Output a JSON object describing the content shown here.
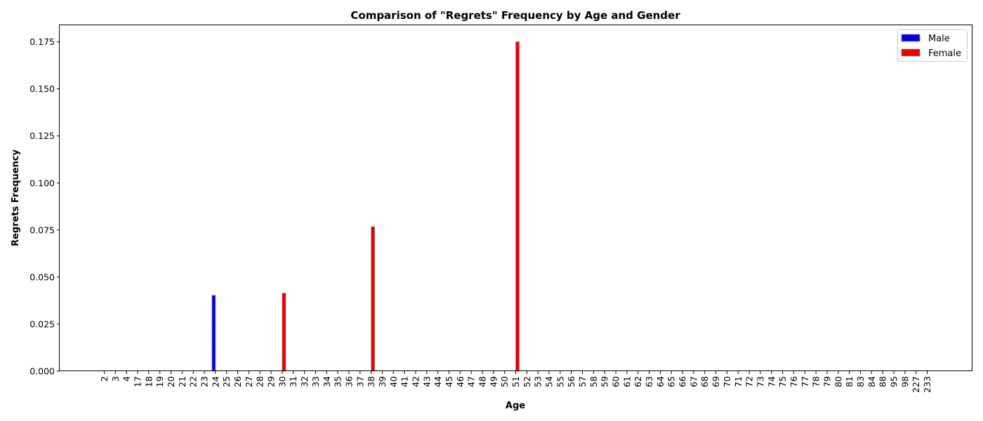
{
  "chart_data": {
    "type": "bar",
    "title": "Comparison of \"Regrets\" Frequency by Age and Gender",
    "xlabel": "Age",
    "ylabel": "Regrets Frequency",
    "categories": [
      "2",
      "3",
      "4",
      "17",
      "18",
      "19",
      "20",
      "21",
      "22",
      "23",
      "24",
      "25",
      "26",
      "27",
      "28",
      "29",
      "30",
      "31",
      "32",
      "33",
      "34",
      "35",
      "36",
      "37",
      "38",
      "39",
      "40",
      "41",
      "42",
      "43",
      "44",
      "45",
      "46",
      "47",
      "48",
      "49",
      "50",
      "51",
      "52",
      "53",
      "54",
      "55",
      "56",
      "57",
      "58",
      "59",
      "60",
      "61",
      "62",
      "63",
      "64",
      "65",
      "66",
      "67",
      "68",
      "69",
      "70",
      "71",
      "72",
      "73",
      "74",
      "75",
      "76",
      "77",
      "78",
      "79",
      "80",
      "81",
      "83",
      "84",
      "88",
      "95",
      "98",
      "227",
      "233"
    ],
    "series": [
      {
        "name": "Male",
        "color": "#0000dd",
        "values": [
          0,
          0,
          0,
          0,
          0,
          0,
          0,
          0,
          0,
          0,
          0.0403,
          0,
          0,
          0,
          0,
          0,
          0,
          0,
          0,
          0,
          0,
          0,
          0,
          0,
          0,
          0,
          0,
          0,
          0,
          0,
          0,
          0,
          0,
          0,
          0,
          0,
          0,
          0,
          0,
          0,
          0,
          0,
          0,
          0,
          0,
          0,
          0,
          0,
          0,
          0,
          0,
          0,
          0,
          0,
          0,
          0,
          0,
          0,
          0,
          0,
          0,
          0,
          0,
          0,
          0,
          0,
          0,
          0,
          0,
          0,
          0,
          0,
          0,
          0,
          0
        ]
      },
      {
        "name": "Female",
        "color": "#ee0000",
        "values": [
          0,
          0,
          0,
          0,
          0,
          0,
          0,
          0,
          0,
          0,
          0,
          0,
          0,
          0,
          0,
          0,
          0.0415,
          0,
          0,
          0,
          0,
          0,
          0,
          0,
          0.0768,
          0,
          0,
          0,
          0,
          0,
          0,
          0,
          0,
          0,
          0,
          0,
          0,
          0.175,
          0,
          0,
          0,
          0,
          0,
          0,
          0,
          0,
          0,
          0,
          0,
          0,
          0,
          0,
          0,
          0,
          0,
          0,
          0,
          0,
          0,
          0,
          0,
          0,
          0,
          0,
          0,
          0,
          0,
          0,
          0,
          0,
          0,
          0,
          0,
          0,
          0
        ]
      }
    ],
    "ylim": [
      0,
      0.1838
    ],
    "yticks": [
      "0.000",
      "0.025",
      "0.050",
      "0.075",
      "0.100",
      "0.125",
      "0.150",
      "0.175"
    ],
    "grid": false,
    "legend": "top-right"
  }
}
